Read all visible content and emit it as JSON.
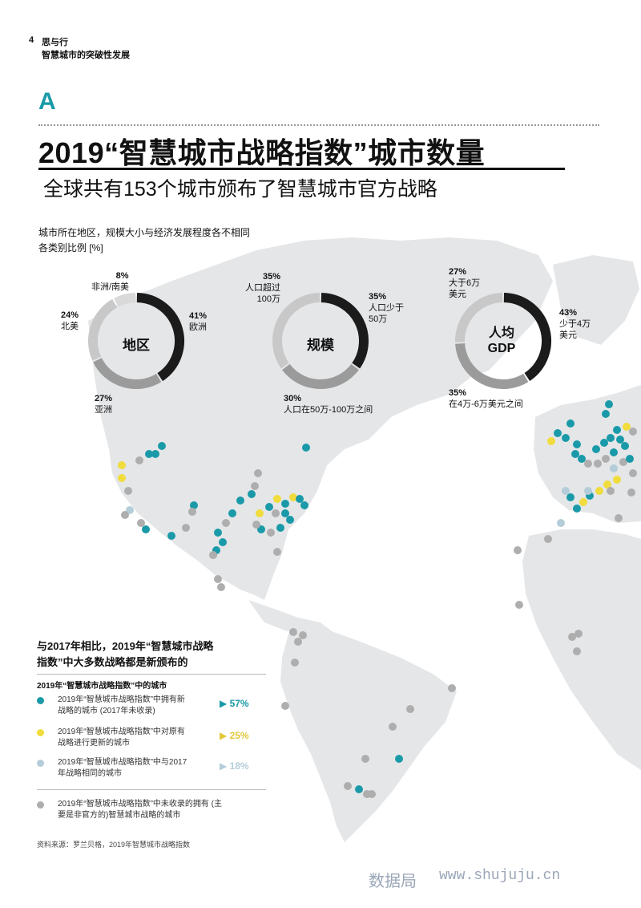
{
  "header": {
    "page_number": "4",
    "section": "思与行",
    "subtitle": "智慧城市的突破性发展"
  },
  "section_letter": "A",
  "title": "2019“智慧城市战略指数”城市数量",
  "subtitle": "全球共有153个城市颁布了智慧城市官方战略",
  "intro_line1": "城市所在地区，规模大小与经济发展程度各不相同",
  "intro_line2": "各类别比例 [%]",
  "colors": {
    "dark": "#1b1b1b",
    "mid": "#9b9b9b",
    "light": "#d2d2d2",
    "teal": "#1a9aa8",
    "yellow": "#f0dc3c",
    "lightblue": "#b4cdd8",
    "gray": "#aeaeae",
    "map": "#e4e6e8"
  },
  "chart_data": [
    {
      "type": "pie",
      "center_label": "地区",
      "categories": [
        "欧洲",
        "亚洲",
        "北美",
        "非洲/南美"
      ],
      "values": [
        41,
        27,
        24,
        8
      ],
      "segment_labels": [
        {
          "pct": "41%",
          "text": "欧洲"
        },
        {
          "pct": "27%",
          "text": "亚洲"
        },
        {
          "pct": "24%",
          "text": "北美"
        },
        {
          "pct": "8%",
          "text": "非洲/南美"
        }
      ]
    },
    {
      "type": "pie",
      "center_label": "规模",
      "categories": [
        "人口少于50万",
        "人口在50万-100万之间",
        "人口超过100万"
      ],
      "values": [
        35,
        30,
        35
      ],
      "segment_labels": [
        {
          "pct": "35%",
          "text1": "人口少于",
          "text2": "50万"
        },
        {
          "pct": "30%",
          "text1": "人口在50万-100万之间"
        },
        {
          "pct": "35%",
          "text1": "人口超过",
          "text2": "100万"
        }
      ]
    },
    {
      "type": "pie",
      "center_label_line1": "人均",
      "center_label_line2": "GDP",
      "categories": [
        "少于4万美元",
        "在4万-6万美元之间",
        "大于6万美元"
      ],
      "values": [
        43,
        35,
        27
      ],
      "segment_labels": [
        {
          "pct": "43%",
          "text1": "少于4万",
          "text2": "美元"
        },
        {
          "pct": "35%",
          "text1": "在4万-6万美元之间"
        },
        {
          "pct": "27%",
          "text1": "大于6万",
          "text2": "美元"
        }
      ]
    }
  ],
  "legend": {
    "title_line1": "与2017年相比，2019年“智慧城市战略",
    "title_line2": "指数”中大多数战略都是新颁布的",
    "subtitle": "2019年“智慧城市战略指数”中的城市",
    "items": [
      {
        "line1": "2019年“智慧城市战略指数”中拥有新",
        "line2": "战略的城市 (2017年未收录)",
        "pct": "57%",
        "color": "#1a9aa8"
      },
      {
        "line1": "2019年“智慧城市战略指数”中对原有",
        "line2": "战略进行更新的城市",
        "pct": "25%",
        "color": "#f0dc3c"
      },
      {
        "line1": "2019年“智慧城市战略指数”中与2017",
        "line2": "年战略相同的城市",
        "pct": "18%",
        "color": "#b4cdd8"
      },
      {
        "line1": "2019年“智慧城市战略指数”中未收录的拥有 (主",
        "line2": "要是非官方的)智慧城市战略的城市",
        "pct": "",
        "color": "#aeaeae"
      }
    ]
  },
  "source": "资料来源：罗兰贝格，2019年智慧城市战略指数",
  "watermark": "数据局",
  "watermark_url": "www.shujuju.cn"
}
